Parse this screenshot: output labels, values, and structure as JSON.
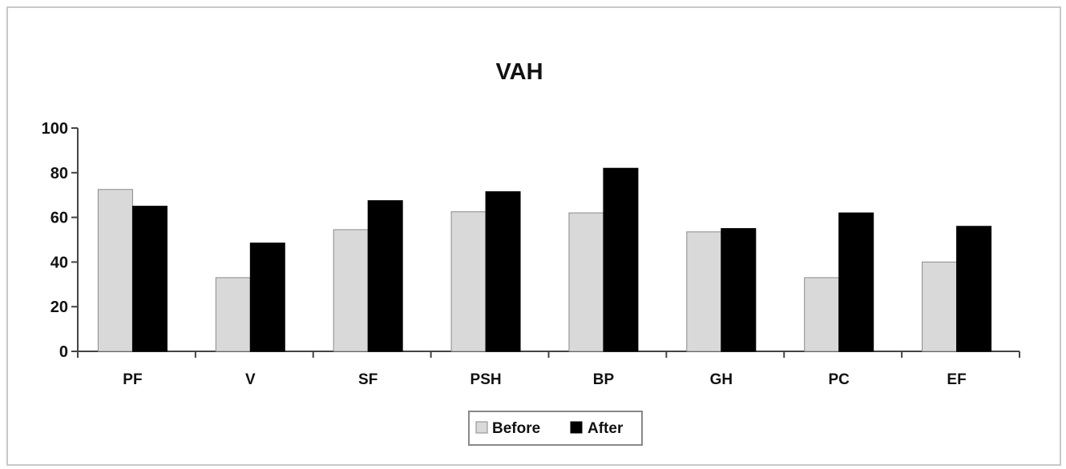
{
  "chart_data": {
    "type": "bar",
    "title": "VAH",
    "xlabel": "",
    "ylabel": "",
    "categories": [
      "PF",
      "V",
      "SF",
      "PSH",
      "BP",
      "GH",
      "PC",
      "EF"
    ],
    "series": [
      {
        "name": "Before",
        "values": [
          72.5,
          33,
          54.5,
          62.5,
          62,
          53.5,
          33,
          40
        ],
        "color": "#d9d9d9"
      },
      {
        "name": "After",
        "values": [
          65,
          48.5,
          67.5,
          71.5,
          82,
          55,
          62,
          56
        ],
        "color": "#000000"
      }
    ],
    "ylim": [
      0,
      100
    ],
    "yticks": [
      0,
      20,
      40,
      60,
      80,
      100
    ],
    "grid": false,
    "legend_position": "bottom-center"
  }
}
